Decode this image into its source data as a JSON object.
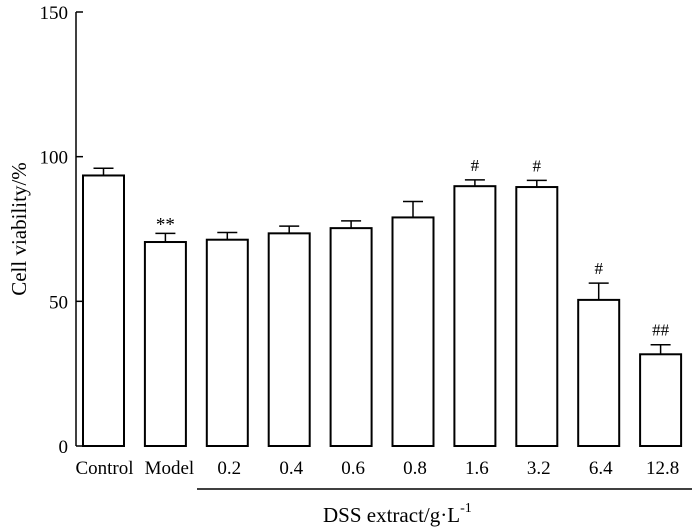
{
  "chart_data": {
    "type": "bar",
    "title": "",
    "ylabel": "Cell viability/%",
    "xlabel": {
      "text": "DSS extract/g·L",
      "superscript": "-1"
    },
    "ylim": [
      0,
      150
    ],
    "yticks": [
      "0",
      "50",
      "100",
      "150"
    ],
    "categories": [
      "Control",
      "Model",
      "0.2",
      "0.4",
      "0.6",
      "0.8",
      "1.6",
      "3.2",
      "6.4",
      "12.8"
    ],
    "values": [
      93.5,
      70.5,
      71.3,
      73.5,
      75.3,
      79.0,
      89.8,
      89.5,
      50.5,
      31.7
    ],
    "errors": [
      2.5,
      3.0,
      2.5,
      2.5,
      2.5,
      5.5,
      2.2,
      2.3,
      5.8,
      3.3
    ],
    "annotations": [
      "",
      "**",
      "",
      "",
      "",
      "",
      "#",
      "#",
      "#",
      "##"
    ],
    "bar_fill": "#ffffff",
    "bar_stroke": "#000000",
    "grid": false
  }
}
